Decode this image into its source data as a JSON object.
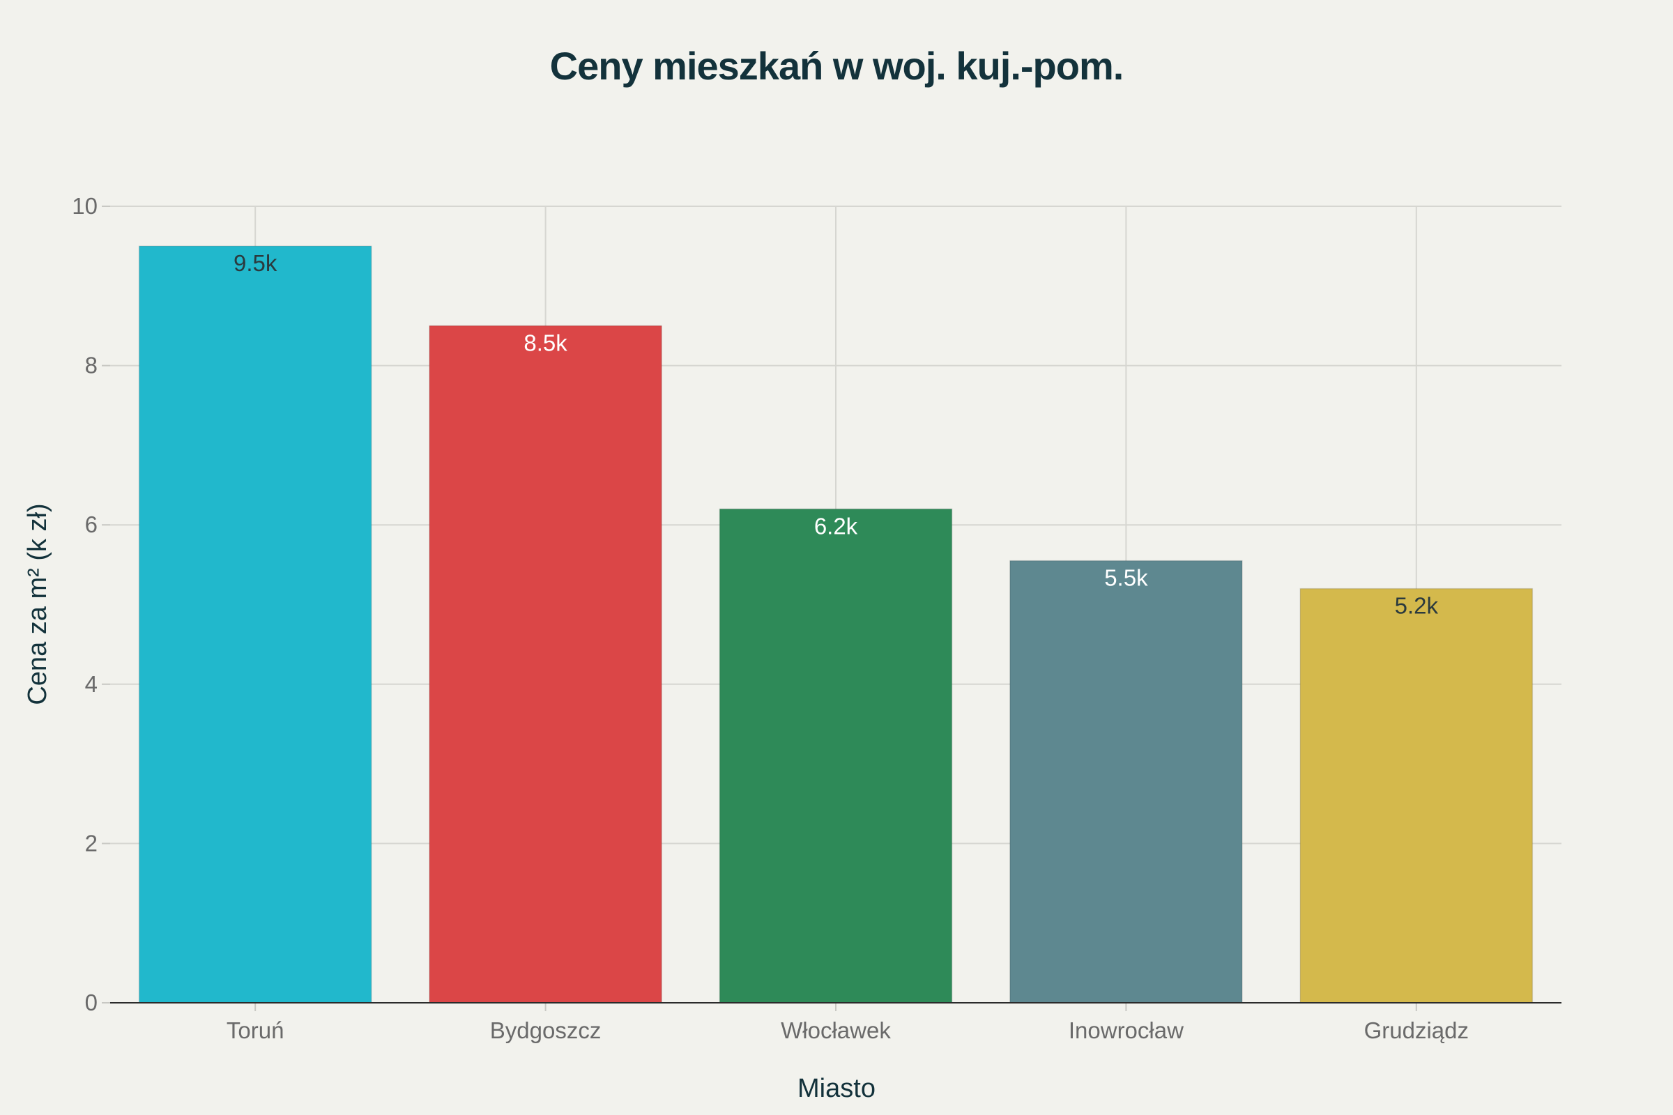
{
  "chart_data": {
    "type": "bar",
    "title": "Ceny mieszkań w woj. kuj.-pom.",
    "xlabel": "Miasto",
    "ylabel": "Cena za m² (k zł)",
    "categories": [
      "Toruń",
      "Bydgoszcz",
      "Włocławek",
      "Inowrocław",
      "Grudziądz"
    ],
    "values": [
      9.5,
      8.5,
      6.2,
      5.55,
      5.2
    ],
    "data_labels": [
      "9.5k",
      "8.5k",
      "6.2k",
      "5.5k",
      "5.2k"
    ],
    "colors": [
      "#21b8cc",
      "#db4647",
      "#2e8a58",
      "#5e8890",
      "#d4b94c"
    ],
    "label_colors": [
      "#2b3a3e",
      "#ffffff",
      "#ffffff",
      "#ffffff",
      "#2b3a3e"
    ],
    "ylim": [
      0,
      10
    ],
    "yticks": [
      0,
      2,
      4,
      6,
      8,
      10
    ],
    "grid": true,
    "legend": "none"
  }
}
